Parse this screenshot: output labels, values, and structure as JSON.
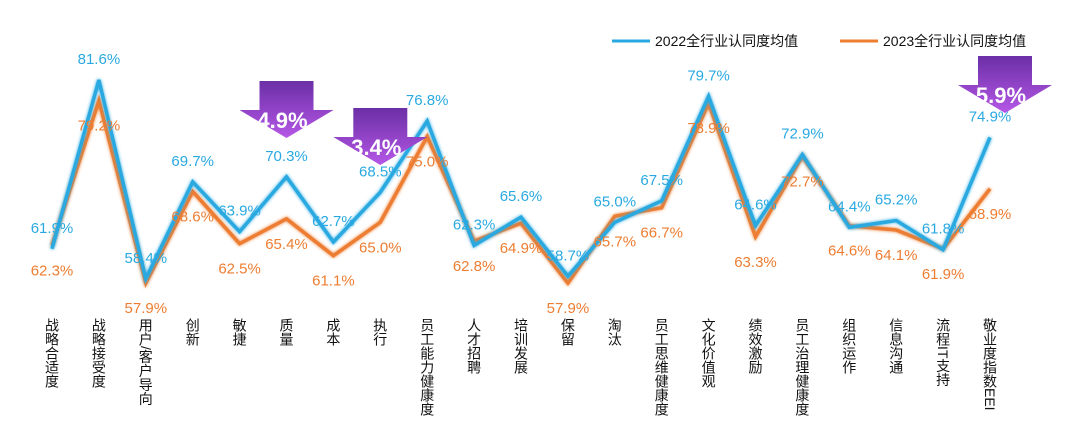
{
  "chart_data": {
    "type": "line",
    "title": "",
    "categories": [
      "战略合适度",
      "战略接受度",
      "用户/客户导向",
      "创新",
      "敏捷",
      "质量",
      "成本",
      "执行",
      "员工能力健康度",
      "人才招聘",
      "培训发展",
      "保留",
      "淘汰",
      "员工思维健康度",
      "文化价值观",
      "绩效激励",
      "员工治理健康度",
      "组织运作",
      "信息沟通",
      "流程IT支持",
      "敬业度指数EEI"
    ],
    "series": [
      {
        "name": "2022全行业认同度均值",
        "color": "#29a9e1",
        "values": [
          61.9,
          81.6,
          58.4,
          69.7,
          63.9,
          70.3,
          62.7,
          68.5,
          76.8,
          62.3,
          65.6,
          58.7,
          65.0,
          67.5,
          79.7,
          64.6,
          72.9,
          64.4,
          65.2,
          61.8,
          74.9
        ]
      },
      {
        "name": "2023全行业认同度均值",
        "color": "#ed7d31",
        "values": [
          62.3,
          79.2,
          57.9,
          68.6,
          62.5,
          65.4,
          61.1,
          65.0,
          75.0,
          62.8,
          64.9,
          57.9,
          65.7,
          66.7,
          78.9,
          63.3,
          72.7,
          64.6,
          64.1,
          61.9,
          68.9
        ]
      }
    ],
    "value_suffix": "%",
    "legend_position": "top-right",
    "grid": false,
    "annotations": [
      {
        "category": "质量",
        "text": "4.9%",
        "type": "down-arrow"
      },
      {
        "category": "执行",
        "text": "3.4%",
        "type": "down-arrow"
      },
      {
        "category": "敬业度指数EEI",
        "text": "5.9%",
        "type": "down-arrow"
      }
    ],
    "arrow_color": "#8e3fc8"
  }
}
